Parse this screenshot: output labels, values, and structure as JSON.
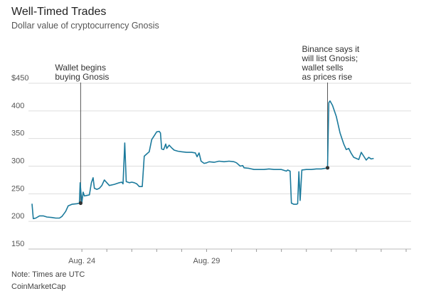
{
  "header": {
    "title": "Well-Timed Trades",
    "subtitle": "Dollar value of cryptocurrency Gnosis"
  },
  "footer": {
    "note": "Note: Times are UTC",
    "source": "CoinMarketCap"
  },
  "colors": {
    "line": "#1b7a9c",
    "grid": "#dddddd",
    "marker": "#333333"
  },
  "chart_data": {
    "type": "line",
    "title": "Well-Timed Trades",
    "subtitle": "Dollar value of cryptocurrency Gnosis",
    "xlabel": "",
    "ylabel": "",
    "ylim": [
      150,
      450
    ],
    "xlim": [
      -1,
      14.2
    ],
    "y_ticks": [
      150,
      200,
      250,
      300,
      350,
      400,
      450
    ],
    "y_tick_labels": [
      "150",
      "200",
      "250",
      "300",
      "350",
      "400",
      "$450"
    ],
    "x_ticks": [
      1,
      2,
      3,
      4,
      5,
      6,
      7,
      8,
      9,
      10,
      11,
      12,
      13,
      14
    ],
    "x_tick_labels": [
      {
        "x": 1,
        "label": "Aug. 24"
      },
      {
        "x": 6,
        "label": "Aug. 29"
      }
    ],
    "grid": true,
    "series": [
      {
        "name": "Gnosis",
        "points": [
          [
            -1.0,
            232
          ],
          [
            -0.95,
            205
          ],
          [
            -0.85,
            206
          ],
          [
            -0.7,
            210
          ],
          [
            -0.55,
            210
          ],
          [
            -0.4,
            208
          ],
          [
            -0.2,
            207
          ],
          [
            -0.05,
            206
          ],
          [
            0.1,
            206
          ],
          [
            0.2,
            209
          ],
          [
            0.35,
            218
          ],
          [
            0.45,
            228
          ],
          [
            0.6,
            231
          ],
          [
            0.8,
            232
          ],
          [
            0.9,
            233
          ],
          [
            0.93,
            270
          ],
          [
            0.97,
            248
          ],
          [
            1.0,
            234
          ],
          [
            1.05,
            253
          ],
          [
            1.1,
            246
          ],
          [
            1.2,
            247
          ],
          [
            1.3,
            248
          ],
          [
            1.38,
            270
          ],
          [
            1.45,
            279
          ],
          [
            1.5,
            260
          ],
          [
            1.6,
            258
          ],
          [
            1.7,
            260
          ],
          [
            1.8,
            265
          ],
          [
            1.9,
            275
          ],
          [
            2.0,
            270
          ],
          [
            2.1,
            265
          ],
          [
            2.3,
            267
          ],
          [
            2.5,
            270
          ],
          [
            2.6,
            271
          ],
          [
            2.65,
            268
          ],
          [
            2.72,
            342
          ],
          [
            2.78,
            272
          ],
          [
            2.9,
            270
          ],
          [
            3.0,
            271
          ],
          [
            3.1,
            270
          ],
          [
            3.2,
            268
          ],
          [
            3.3,
            263
          ],
          [
            3.42,
            263
          ],
          [
            3.5,
            318
          ],
          [
            3.6,
            322
          ],
          [
            3.7,
            326
          ],
          [
            3.8,
            348
          ],
          [
            3.9,
            355
          ],
          [
            4.0,
            362
          ],
          [
            4.1,
            363
          ],
          [
            4.15,
            360
          ],
          [
            4.2,
            331
          ],
          [
            4.28,
            330
          ],
          [
            4.36,
            340
          ],
          [
            4.4,
            332
          ],
          [
            4.5,
            338
          ],
          [
            4.6,
            333
          ],
          [
            4.7,
            329
          ],
          [
            4.85,
            327
          ],
          [
            5.0,
            326
          ],
          [
            5.2,
            325
          ],
          [
            5.4,
            325
          ],
          [
            5.55,
            324
          ],
          [
            5.62,
            317
          ],
          [
            5.7,
            324
          ],
          [
            5.78,
            309
          ],
          [
            5.9,
            305
          ],
          [
            6.0,
            306
          ],
          [
            6.1,
            308
          ],
          [
            6.3,
            307
          ],
          [
            6.5,
            309
          ],
          [
            6.7,
            308
          ],
          [
            6.9,
            309
          ],
          [
            7.1,
            308
          ],
          [
            7.2,
            306
          ],
          [
            7.35,
            300
          ],
          [
            7.45,
            301
          ],
          [
            7.5,
            297
          ],
          [
            7.7,
            296
          ],
          [
            7.9,
            294
          ],
          [
            8.1,
            294
          ],
          [
            8.3,
            294
          ],
          [
            8.5,
            295
          ],
          [
            8.7,
            294
          ],
          [
            8.85,
            294
          ],
          [
            9.0,
            294
          ],
          [
            9.2,
            291
          ],
          [
            9.25,
            293
          ],
          [
            9.35,
            291
          ],
          [
            9.4,
            233
          ],
          [
            9.5,
            231
          ],
          [
            9.6,
            231
          ],
          [
            9.65,
            232
          ],
          [
            9.7,
            290
          ],
          [
            9.75,
            238
          ],
          [
            9.82,
            293
          ],
          [
            10.0,
            294
          ],
          [
            10.2,
            294
          ],
          [
            10.4,
            295
          ],
          [
            10.6,
            295
          ],
          [
            10.75,
            296
          ],
          [
            10.85,
            297
          ],
          [
            10.9,
            415
          ],
          [
            10.95,
            418
          ],
          [
            11.05,
            410
          ],
          [
            11.2,
            390
          ],
          [
            11.35,
            360
          ],
          [
            11.5,
            340
          ],
          [
            11.6,
            330
          ],
          [
            11.7,
            332
          ],
          [
            11.8,
            323
          ],
          [
            11.9,
            316
          ],
          [
            12.0,
            314
          ],
          [
            12.1,
            312
          ],
          [
            12.2,
            325
          ],
          [
            12.3,
            318
          ],
          [
            12.4,
            311
          ],
          [
            12.5,
            316
          ],
          [
            12.6,
            313
          ],
          [
            12.7,
            314
          ]
        ]
      }
    ],
    "annotations": [
      {
        "x": 0.95,
        "y": 233,
        "lines": [
          "Wallet begins",
          "buying Gnosis"
        ]
      },
      {
        "x": 10.85,
        "y": 297,
        "lines": [
          "Binance says it",
          "will list Gnosis;",
          "wallet sells",
          "as prices rise"
        ]
      }
    ]
  }
}
